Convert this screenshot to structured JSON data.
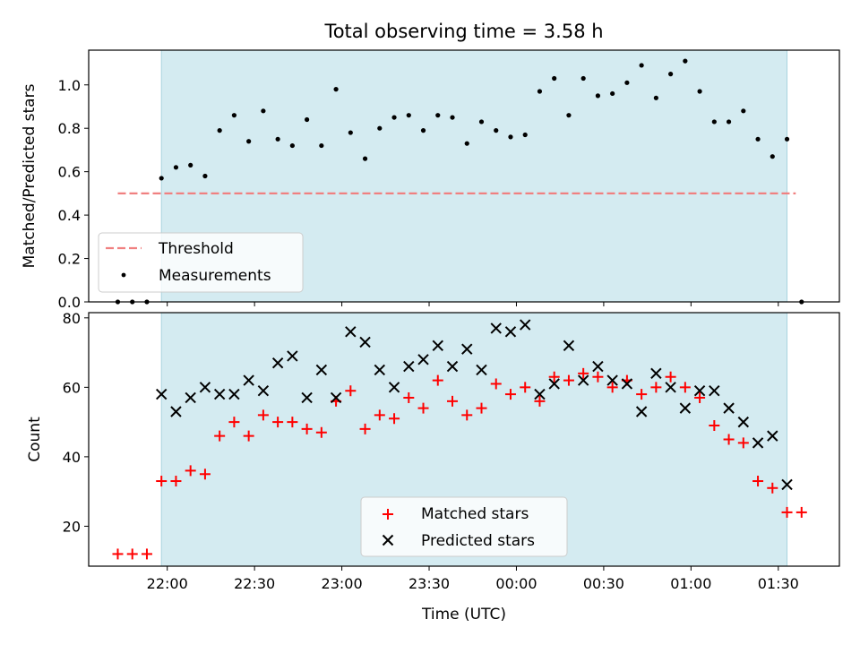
{
  "chart_data": {
    "type": "scatter",
    "title": "Total observing time = 3.58 h",
    "xlabel": "Time (UTC)",
    "x_tick_labels": [
      "22:00",
      "22:30",
      "23:00",
      "23:30",
      "00:00",
      "00:30",
      "01:00",
      "01:30"
    ],
    "observing_window": {
      "start": "21:58",
      "end": "01:33",
      "color": "#d4ebf1"
    },
    "top": {
      "ylabel": "Matched/Predicted stars",
      "ylim": [
        0,
        1.16
      ],
      "yticks": [
        0.0,
        0.2,
        0.4,
        0.6,
        0.8,
        1.0
      ],
      "threshold": {
        "name": "Threshold",
        "value": 0.5,
        "color": "#f08080",
        "x_start": "21:43",
        "x_end": "01:36"
      },
      "measurements": {
        "name": "Measurements",
        "color": "#000000",
        "points": [
          [
            "21:43",
            0.0
          ],
          [
            "21:48",
            0.0
          ],
          [
            "21:53",
            0.0
          ],
          [
            "21:58",
            0.57
          ],
          [
            "22:03",
            0.62
          ],
          [
            "22:08",
            0.63
          ],
          [
            "22:13",
            0.58
          ],
          [
            "22:18",
            0.79
          ],
          [
            "22:23",
            0.86
          ],
          [
            "22:28",
            0.74
          ],
          [
            "22:33",
            0.88
          ],
          [
            "22:38",
            0.75
          ],
          [
            "22:43",
            0.72
          ],
          [
            "22:48",
            0.84
          ],
          [
            "22:53",
            0.72
          ],
          [
            "22:58",
            0.98
          ],
          [
            "23:03",
            0.78
          ],
          [
            "23:08",
            0.66
          ],
          [
            "23:13",
            0.8
          ],
          [
            "23:18",
            0.85
          ],
          [
            "23:23",
            0.86
          ],
          [
            "23:28",
            0.79
          ],
          [
            "23:33",
            0.86
          ],
          [
            "23:38",
            0.85
          ],
          [
            "23:43",
            0.73
          ],
          [
            "23:48",
            0.83
          ],
          [
            "23:53",
            0.79
          ],
          [
            "23:58",
            0.76
          ],
          [
            "00:03",
            0.77
          ],
          [
            "00:08",
            0.97
          ],
          [
            "00:13",
            1.03
          ],
          [
            "00:18",
            0.86
          ],
          [
            "00:23",
            1.03
          ],
          [
            "00:28",
            0.95
          ],
          [
            "00:33",
            0.96
          ],
          [
            "00:38",
            1.01
          ],
          [
            "00:43",
            1.09
          ],
          [
            "00:48",
            0.94
          ],
          [
            "00:53",
            1.05
          ],
          [
            "00:58",
            1.11
          ],
          [
            "01:03",
            0.97
          ],
          [
            "01:08",
            0.83
          ],
          [
            "01:13",
            0.83
          ],
          [
            "01:18",
            0.88
          ],
          [
            "01:23",
            0.75
          ],
          [
            "01:28",
            0.67
          ],
          [
            "01:33",
            0.75
          ],
          [
            "01:38",
            0.0
          ]
        ]
      },
      "legend": {
        "position": "lower-left"
      }
    },
    "bottom": {
      "ylabel": "Count",
      "ylim": [
        8.5,
        81.5
      ],
      "yticks": [
        20,
        40,
        60,
        80
      ],
      "series": [
        {
          "name": "Matched stars",
          "marker": "+",
          "color": "#ff0000",
          "points": [
            [
              "21:43",
              12
            ],
            [
              "21:48",
              12
            ],
            [
              "21:53",
              12
            ],
            [
              "21:58",
              33
            ],
            [
              "22:03",
              33
            ],
            [
              "22:08",
              36
            ],
            [
              "22:13",
              35
            ],
            [
              "22:18",
              46
            ],
            [
              "22:23",
              50
            ],
            [
              "22:28",
              46
            ],
            [
              "22:33",
              52
            ],
            [
              "22:38",
              50
            ],
            [
              "22:43",
              50
            ],
            [
              "22:48",
              48
            ],
            [
              "22:53",
              47
            ],
            [
              "22:58",
              56
            ],
            [
              "23:03",
              59
            ],
            [
              "23:08",
              48
            ],
            [
              "23:13",
              52
            ],
            [
              "23:18",
              51
            ],
            [
              "23:23",
              57
            ],
            [
              "23:28",
              54
            ],
            [
              "23:33",
              62
            ],
            [
              "23:38",
              56
            ],
            [
              "23:43",
              52
            ],
            [
              "23:48",
              54
            ],
            [
              "23:53",
              61
            ],
            [
              "23:58",
              58
            ],
            [
              "00:03",
              60
            ],
            [
              "00:08",
              56
            ],
            [
              "00:13",
              63
            ],
            [
              "00:18",
              62
            ],
            [
              "00:23",
              64
            ],
            [
              "00:28",
              63
            ],
            [
              "00:33",
              60
            ],
            [
              "00:38",
              62
            ],
            [
              "00:43",
              58
            ],
            [
              "00:48",
              60
            ],
            [
              "00:53",
              63
            ],
            [
              "00:58",
              60
            ],
            [
              "01:03",
              57
            ],
            [
              "01:08",
              49
            ],
            [
              "01:13",
              45
            ],
            [
              "01:18",
              44
            ],
            [
              "01:23",
              33
            ],
            [
              "01:28",
              31
            ],
            [
              "01:33",
              24
            ],
            [
              "01:38",
              24
            ]
          ]
        },
        {
          "name": "Predicted stars",
          "marker": "x",
          "color": "#000000",
          "points": [
            [
              "21:58",
              58
            ],
            [
              "22:03",
              53
            ],
            [
              "22:08",
              57
            ],
            [
              "22:13",
              60
            ],
            [
              "22:18",
              58
            ],
            [
              "22:23",
              58
            ],
            [
              "22:28",
              62
            ],
            [
              "22:33",
              59
            ],
            [
              "22:38",
              67
            ],
            [
              "22:43",
              69
            ],
            [
              "22:48",
              57
            ],
            [
              "22:53",
              65
            ],
            [
              "22:58",
              57
            ],
            [
              "23:03",
              76
            ],
            [
              "23:08",
              73
            ],
            [
              "23:13",
              65
            ],
            [
              "23:18",
              60
            ],
            [
              "23:23",
              66
            ],
            [
              "23:28",
              68
            ],
            [
              "23:33",
              72
            ],
            [
              "23:38",
              66
            ],
            [
              "23:43",
              71
            ],
            [
              "23:48",
              65
            ],
            [
              "23:53",
              77
            ],
            [
              "23:58",
              76
            ],
            [
              "00:03",
              78
            ],
            [
              "00:08",
              58
            ],
            [
              "00:13",
              61
            ],
            [
              "00:18",
              72
            ],
            [
              "00:23",
              62
            ],
            [
              "00:28",
              66
            ],
            [
              "00:33",
              62
            ],
            [
              "00:38",
              61
            ],
            [
              "00:43",
              53
            ],
            [
              "00:48",
              64
            ],
            [
              "00:53",
              60
            ],
            [
              "00:58",
              54
            ],
            [
              "01:03",
              59
            ],
            [
              "01:08",
              59
            ],
            [
              "01:13",
              54
            ],
            [
              "01:18",
              50
            ],
            [
              "01:23",
              44
            ],
            [
              "01:28",
              46
            ],
            [
              "01:33",
              32
            ]
          ]
        }
      ],
      "legend": {
        "position": "lower-center"
      }
    }
  }
}
